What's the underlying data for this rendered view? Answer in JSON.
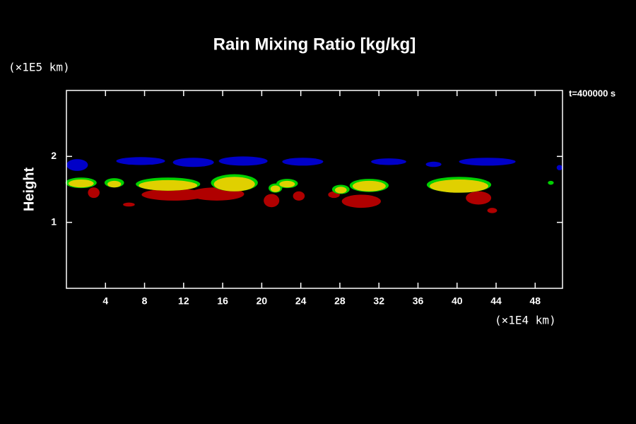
{
  "chart_data": {
    "type": "contour",
    "title": "Rain Mixing Ratio [kg/kg]",
    "ylabel": "Height",
    "yunit": "(×1E5 km)",
    "xunit": "(×1E4 km)",
    "annotation": "t=400000 s",
    "xlim": [
      0,
      50.8
    ],
    "ylim": [
      0,
      3
    ],
    "xticks": [
      4,
      8,
      12,
      16,
      20,
      24,
      28,
      32,
      36,
      40,
      44,
      48
    ],
    "yticks": [
      1,
      2
    ],
    "series": [
      {
        "color": "#0000c8",
        "x": [
          1.1,
          7.6,
          13,
          18.1,
          24.2,
          33,
          37.6,
          43.1,
          50.5
        ],
        "y": [
          1.87,
          1.93,
          1.91,
          1.93,
          1.92,
          1.92,
          1.88,
          1.92,
          1.83
        ],
        "dx": [
          1.1,
          2.5,
          2.1,
          2.5,
          2.1,
          1.8,
          0.8,
          2.9,
          0.3
        ],
        "dy": [
          0.09,
          0.06,
          0.07,
          0.07,
          0.06,
          0.05,
          0.04,
          0.06,
          0.04
        ]
      },
      {
        "color": "#b00000",
        "x": [
          2.8,
          11,
          15.4,
          6.4,
          21,
          23.8,
          27.4,
          30.2,
          42.2,
          43.6
        ],
        "y": [
          1.45,
          1.42,
          1.43,
          1.27,
          1.33,
          1.4,
          1.42,
          1.32,
          1.37,
          1.18
        ],
        "dx": [
          0.6,
          3.3,
          2.8,
          0.6,
          0.8,
          0.6,
          0.6,
          2,
          1.3,
          0.5
        ],
        "dy": [
          0.08,
          0.09,
          0.1,
          0.03,
          0.1,
          0.07,
          0.05,
          0.1,
          0.1,
          0.04
        ]
      },
      {
        "color": "#00d000",
        "x": [
          1.5,
          4.9,
          10.4,
          17.2,
          21.4,
          22.6,
          28.1,
          31,
          40.2,
          49.6
        ],
        "y": [
          1.6,
          1.6,
          1.58,
          1.6,
          1.52,
          1.59,
          1.5,
          1.56,
          1.57,
          1.6
        ],
        "dx": [
          1.6,
          1,
          3.3,
          2.4,
          0.7,
          1.1,
          0.9,
          2,
          3.3,
          0.3
        ],
        "dy": [
          0.08,
          0.07,
          0.1,
          0.13,
          0.07,
          0.07,
          0.07,
          0.1,
          0.12,
          0.03
        ]
      },
      {
        "color": "#e0d000",
        "x": [
          1.5,
          4.9,
          10.4,
          17.2,
          21.4,
          22.6,
          28.1,
          31,
          40.2
        ],
        "y": [
          1.59,
          1.58,
          1.56,
          1.58,
          1.51,
          1.58,
          1.49,
          1.55,
          1.55
        ],
        "dx": [
          1.3,
          0.7,
          3,
          2.1,
          0.5,
          0.8,
          0.6,
          1.7,
          3
        ],
        "dy": [
          0.06,
          0.05,
          0.08,
          0.11,
          0.05,
          0.05,
          0.05,
          0.08,
          0.1
        ]
      }
    ]
  }
}
